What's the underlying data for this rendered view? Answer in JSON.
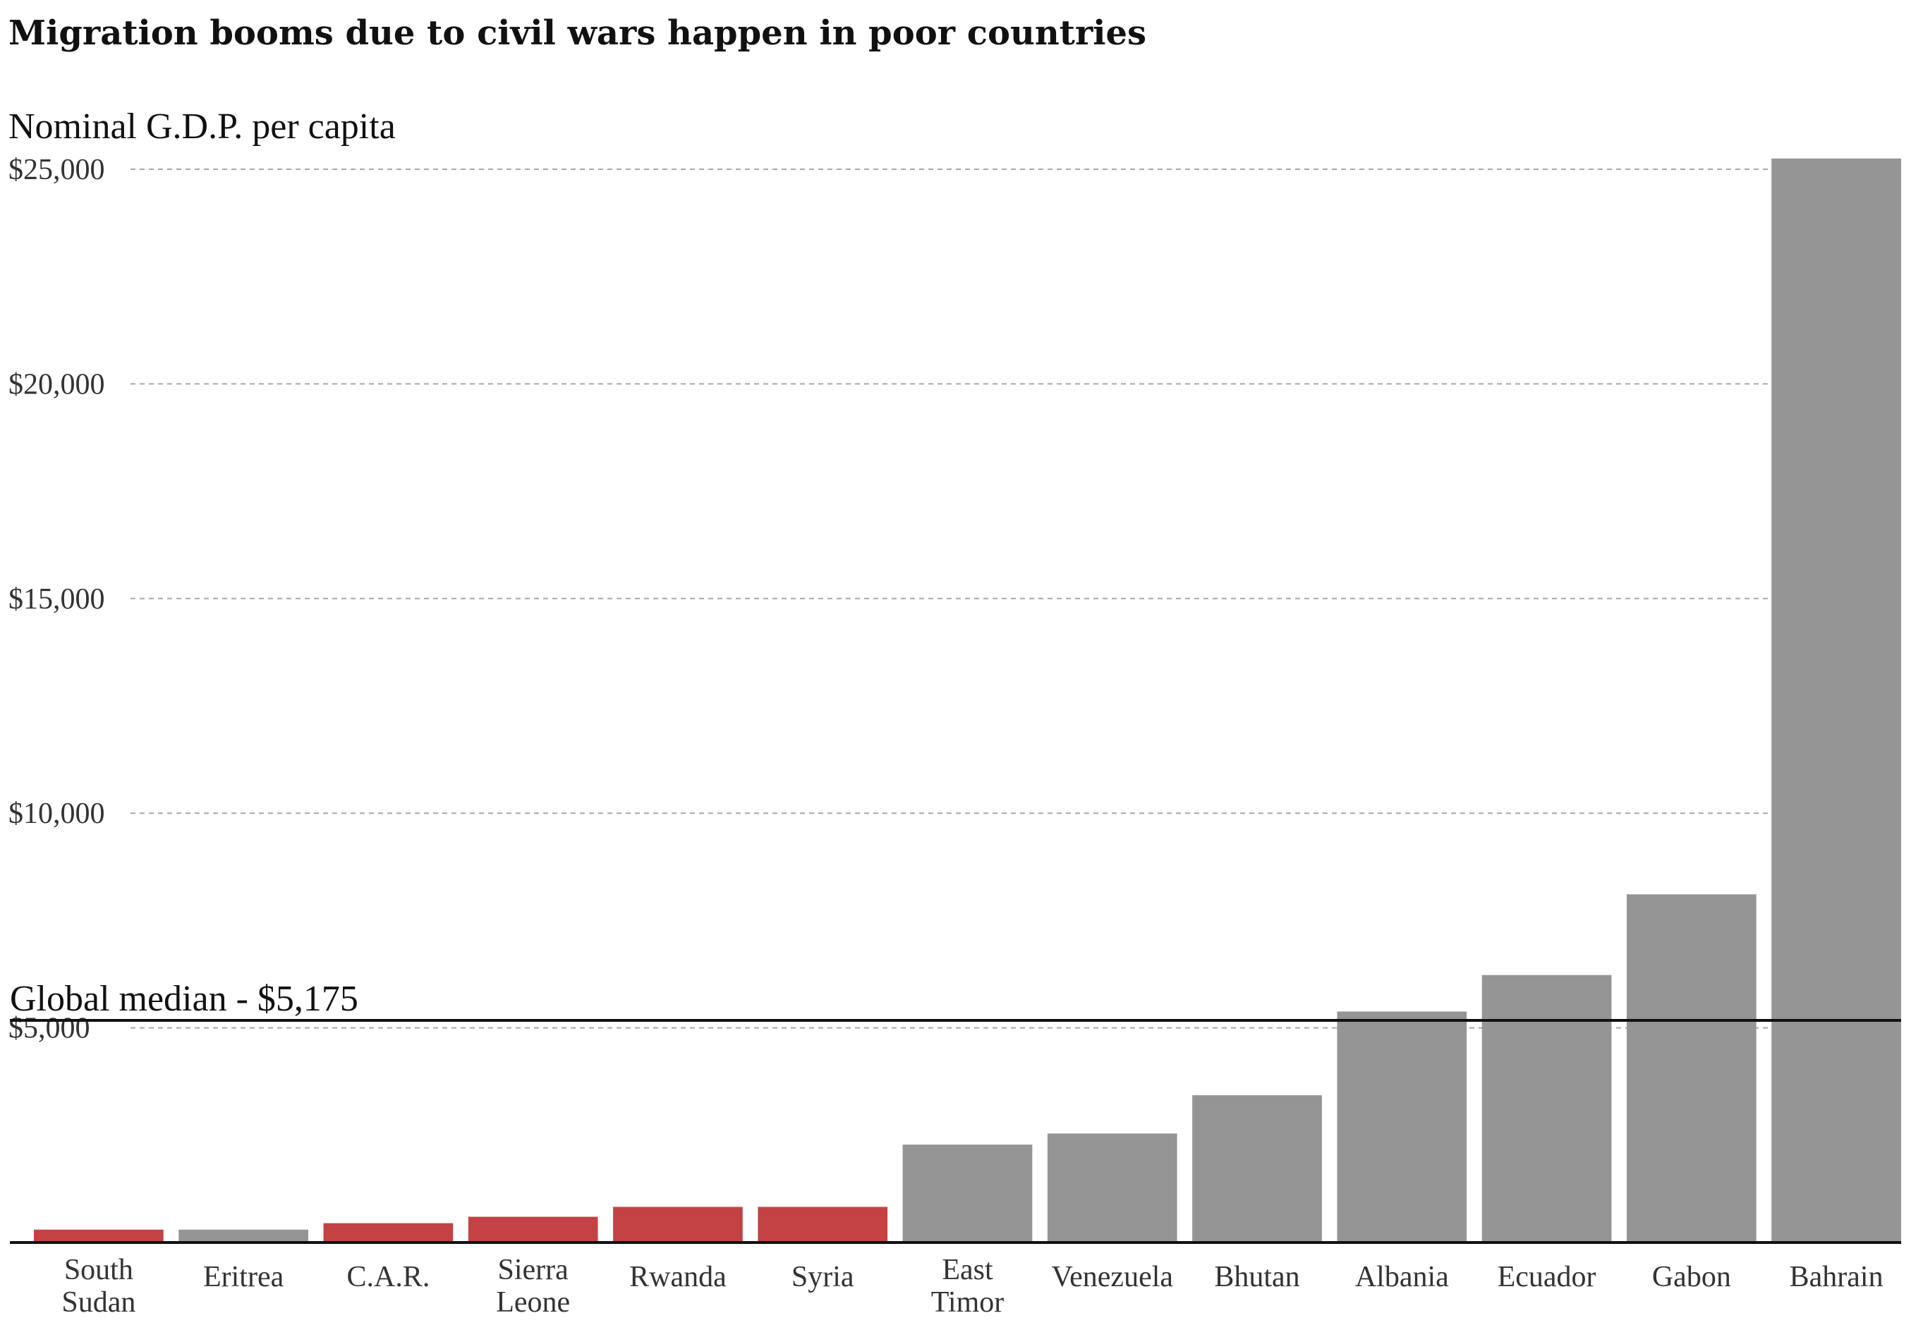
{
  "chart_data": {
    "type": "bar",
    "title": "Migration booms due to civil wars happen in poor countries",
    "ylabel": "Nominal G.D.P. per capita",
    "ylim": [
      0,
      25000
    ],
    "yticks": [
      5000,
      10000,
      15000,
      20000,
      25000
    ],
    "ytick_labels": [
      "$5,000",
      "$10,000",
      "$15,000",
      "$20,000",
      "$25,000"
    ],
    "grid": "horizontal dashed",
    "categories": [
      [
        "South",
        "Sudan"
      ],
      [
        "Eritrea"
      ],
      [
        "C.A.R."
      ],
      [
        "Sierra",
        "Leone"
      ],
      [
        "Rwanda"
      ],
      [
        "Syria"
      ],
      [
        "East",
        "Timor"
      ],
      [
        "Venezuela"
      ],
      [
        "Bhutan"
      ],
      [
        "Albania"
      ],
      [
        "Ecuador"
      ],
      [
        "Gabon"
      ],
      [
        "Bahrain"
      ]
    ],
    "values": [
      300,
      300,
      450,
      600,
      830,
      830,
      2280,
      2540,
      3430,
      5380,
      6230,
      8110,
      25250
    ],
    "highlight": [
      true,
      false,
      true,
      true,
      true,
      true,
      false,
      false,
      false,
      false,
      false,
      false,
      false
    ],
    "colors": {
      "highlight": "#c44244",
      "default": "#959595",
      "axis": "#111111",
      "grid": "#a8a8a8"
    },
    "reference_line": {
      "value": 5175,
      "label": "Global median - $5,175"
    }
  }
}
